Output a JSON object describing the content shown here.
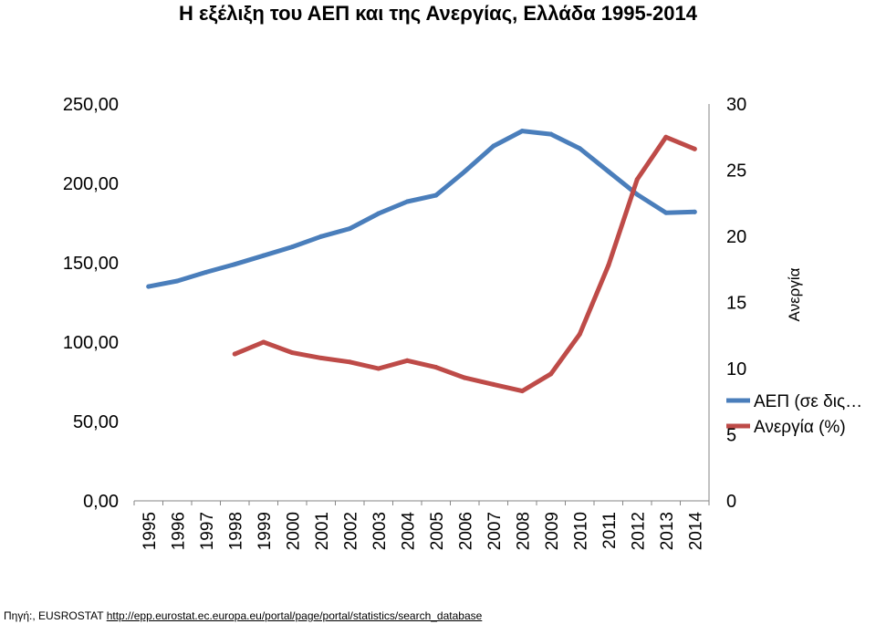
{
  "chart_data": {
    "type": "line",
    "title": "Η εξέλιξη του ΑΕΠ και της Ανεργίας, Ελλάδα 1995-2014",
    "x": [
      "1995",
      "1996",
      "1997",
      "1998",
      "1999",
      "2000",
      "2001",
      "2002",
      "2003",
      "2004",
      "2005",
      "2006",
      "2007",
      "2008",
      "2009",
      "2010",
      "2011",
      "2012",
      "2013",
      "2014"
    ],
    "series": [
      {
        "name": "ΑΕΠ (σε δις…",
        "axis": "left",
        "color": "#4a7ebb",
        "values": [
          135,
          138.5,
          144,
          149,
          154.5,
          160,
          166.5,
          171.5,
          181,
          188.5,
          192.5,
          207.5,
          223.5,
          233,
          231,
          222,
          207.5,
          193,
          181.5,
          182
        ]
      },
      {
        "name": "Ανεργία  (%)",
        "axis": "right",
        "color": "#be4b48",
        "values": [
          null,
          null,
          null,
          11.1,
          12,
          11.2,
          10.8,
          10.5,
          10,
          10.6,
          10.1,
          9.3,
          8.8,
          8.3,
          9.6,
          12.6,
          17.8,
          24.3,
          27.5,
          26.6
        ]
      }
    ],
    "y_left": {
      "ticks": [
        "0,00",
        "50,00",
        "100,00",
        "150,00",
        "200,00",
        "250,00"
      ],
      "ylim": [
        0,
        250
      ]
    },
    "y_right": {
      "label": "Ανεργία",
      "ticks": [
        "0",
        "5",
        "10",
        "15",
        "20",
        "25",
        "30"
      ],
      "ylim": [
        0,
        30
      ]
    },
    "grid": false,
    "legend_position": "right"
  },
  "source": {
    "prefix": "Πηγή:, EUSROSTAT ",
    "link": "http://epp.eurostat.ec.europa.eu/portal/page/portal/statistics/search_database"
  }
}
